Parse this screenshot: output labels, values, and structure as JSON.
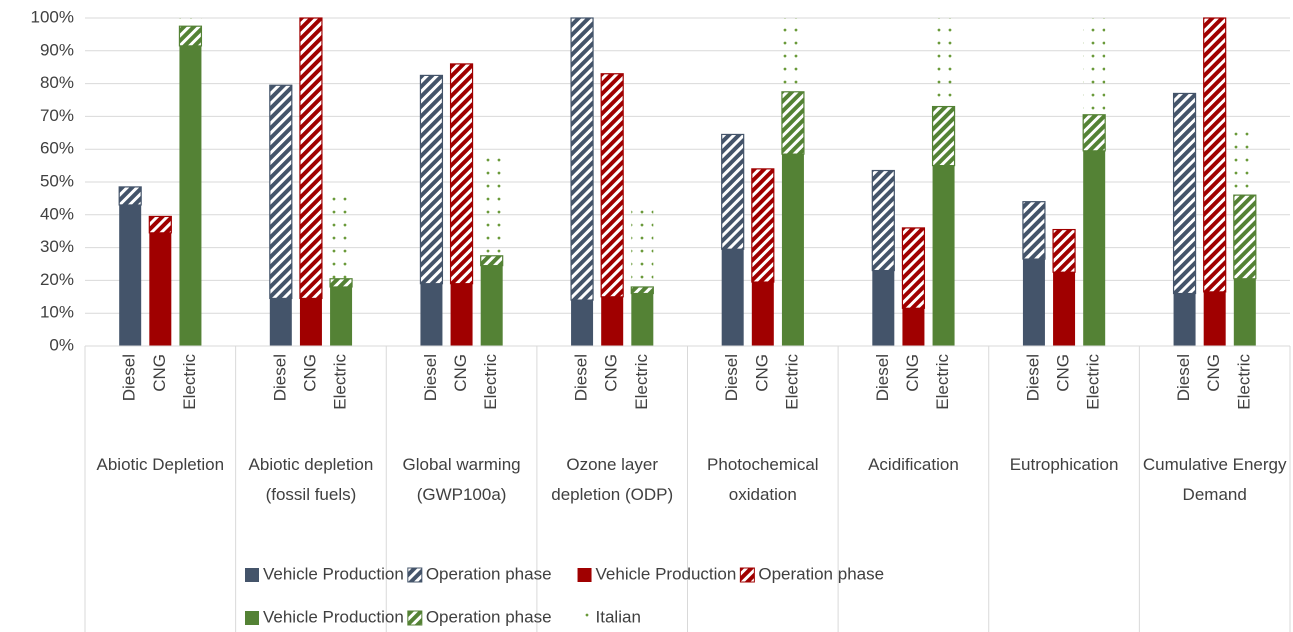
{
  "chart_data": {
    "type": "bar",
    "stacked": true,
    "groups": [
      "Abiotic Depletion",
      "Abiotic depletion (fossil fuels)",
      "Global warming (GWP100a)",
      "Ozone layer depletion (ODP)",
      "Photochemical oxidation",
      "Acidification",
      "Eutrophication",
      "Cumulative Energy Demand"
    ],
    "categories": [
      "Diesel",
      "CNG",
      "Electric",
      "Diesel",
      "CNG",
      "Electric",
      "Diesel",
      "CNG",
      "Electric",
      "Diesel",
      "CNG",
      "Electric",
      "Diesel",
      "CNG",
      "Electric",
      "Diesel",
      "CNG",
      "Electric",
      "Diesel",
      "CNG",
      "Electric",
      "Diesel",
      "CNG",
      "Electric"
    ],
    "series": [
      {
        "name": "Vehicle Production",
        "color": "#44546a",
        "style": "solid",
        "values": [
          43,
          null,
          null,
          14.5,
          null,
          null,
          19,
          null,
          null,
          14,
          null,
          null,
          29.5,
          null,
          null,
          23,
          null,
          null,
          26.5,
          null,
          null,
          16,
          null,
          null
        ]
      },
      {
        "name": "Operation phase",
        "color": "#44546a",
        "style": "hatched",
        "values": [
          5.5,
          null,
          null,
          65,
          null,
          null,
          63.5,
          null,
          null,
          86,
          null,
          null,
          35,
          null,
          null,
          30.5,
          null,
          null,
          17.5,
          null,
          null,
          61,
          null,
          null
        ]
      },
      {
        "name": "Vehicle Production",
        "color": "#a00000",
        "style": "solid",
        "values": [
          null,
          34.5,
          null,
          null,
          14.5,
          null,
          null,
          19,
          null,
          null,
          15,
          null,
          null,
          19.5,
          null,
          null,
          11.5,
          null,
          null,
          22.5,
          null,
          null,
          16.5,
          null
        ]
      },
      {
        "name": "Operation phase",
        "color": "#a00000",
        "style": "hatched",
        "values": [
          null,
          5,
          null,
          null,
          85.5,
          null,
          null,
          67,
          null,
          null,
          68,
          null,
          null,
          34.5,
          null,
          null,
          24.5,
          null,
          null,
          13,
          null,
          null,
          83.5,
          null
        ]
      },
      {
        "name": "Vehicle Production",
        "color": "#548235",
        "style": "solid",
        "values": [
          null,
          null,
          91.5,
          null,
          null,
          18,
          null,
          null,
          24.5,
          null,
          null,
          16,
          null,
          null,
          58.5,
          null,
          null,
          55,
          null,
          null,
          59.5,
          null,
          null,
          20.5
        ]
      },
      {
        "name": "Operation phase",
        "color": "#548235",
        "style": "hatched",
        "values": [
          null,
          null,
          6,
          null,
          null,
          2.5,
          null,
          null,
          3,
          null,
          null,
          2,
          null,
          null,
          19,
          null,
          null,
          18,
          null,
          null,
          11,
          null,
          null,
          25.5
        ]
      },
      {
        "name": "Italian",
        "color": "#6a9a3a",
        "style": "dotted",
        "values": [
          null,
          null,
          2.5,
          null,
          null,
          26.5,
          null,
          null,
          32.5,
          null,
          null,
          25,
          null,
          null,
          22.5,
          null,
          null,
          27,
          null,
          null,
          29.5,
          null,
          null,
          20
        ]
      }
    ],
    "ylim": [
      0,
      100
    ],
    "yticks": [
      {
        "value": 0,
        "label": "0%"
      },
      {
        "value": 10,
        "label": "10%"
      },
      {
        "value": 20,
        "label": "20%"
      },
      {
        "value": 30,
        "label": "30%"
      },
      {
        "value": 40,
        "label": "40%"
      },
      {
        "value": 50,
        "label": "50%"
      },
      {
        "value": 60,
        "label": "60%"
      },
      {
        "value": 70,
        "label": "70%"
      },
      {
        "value": 80,
        "label": "80%"
      },
      {
        "value": 90,
        "label": "90%"
      },
      {
        "value": 100,
        "label": "100%"
      }
    ],
    "grid": true
  }
}
